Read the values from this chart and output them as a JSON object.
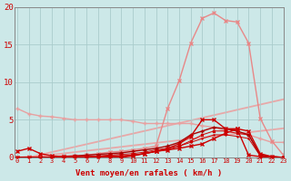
{
  "bg_color": "#cce8e8",
  "grid_color": "#aacccc",
  "xlabel": "Vent moyen/en rafales ( km/h )",
  "xlabel_color": "#cc0000",
  "tick_color": "#cc0000",
  "x": [
    0,
    1,
    2,
    3,
    4,
    5,
    6,
    7,
    8,
    9,
    10,
    11,
    12,
    13,
    14,
    15,
    16,
    17,
    18,
    19,
    20,
    21,
    22,
    23
  ],
  "ylim": [
    0,
    20
  ],
  "xlim": [
    -0.2,
    23
  ],
  "line_linear1": {
    "y": [
      0.0,
      0.0,
      0.18,
      0.35,
      0.52,
      0.7,
      0.88,
      1.05,
      1.22,
      1.4,
      1.58,
      1.75,
      1.93,
      2.1,
      2.28,
      2.46,
      2.63,
      2.8,
      2.98,
      3.16,
      3.33,
      3.51,
      3.68,
      3.86
    ],
    "color": "#e8a8a8",
    "lw": 1.3
  },
  "line_linear2": {
    "y": [
      0.0,
      0.0,
      0.35,
      0.7,
      1.05,
      1.4,
      1.75,
      2.1,
      2.46,
      2.81,
      3.16,
      3.51,
      3.86,
      4.21,
      4.56,
      4.91,
      5.26,
      5.61,
      5.96,
      6.32,
      6.67,
      7.02,
      7.37,
      7.72
    ],
    "color": "#e8a8a8",
    "lw": 1.3
  },
  "line_jagged_pale": {
    "y": [
      0.0,
      0.1,
      0.1,
      0.1,
      0.2,
      0.2,
      0.3,
      0.5,
      0.7,
      0.8,
      1.0,
      1.2,
      1.5,
      6.5,
      10.2,
      15.2,
      18.5,
      19.2,
      18.2,
      18.0,
      15.2,
      5.2,
      2.2,
      0.3
    ],
    "color": "#e88888",
    "marker": "x",
    "ms": 3,
    "lw": 1.0
  },
  "line_flat_pale": {
    "y": [
      6.5,
      5.8,
      5.5,
      5.4,
      5.2,
      5.0,
      5.0,
      5.0,
      5.0,
      5.0,
      4.8,
      4.5,
      4.5,
      4.5,
      4.5,
      4.5,
      4.2,
      4.0,
      3.5,
      3.2,
      3.0,
      2.5,
      2.0,
      2.0
    ],
    "color": "#e8a0a0",
    "marker": "+",
    "ms": 3,
    "lw": 1.0
  },
  "line_dark1": {
    "y": [
      0.8,
      1.2,
      0.5,
      0.2,
      0.1,
      0.1,
      0.1,
      0.1,
      0.2,
      0.2,
      0.3,
      0.5,
      0.8,
      1.0,
      1.2,
      1.5,
      1.8,
      2.5,
      3.2,
      3.8,
      3.5,
      0.5,
      0.1,
      0.0
    ],
    "color": "#cc0000",
    "marker": "x",
    "ms": 3,
    "lw": 1.0
  },
  "line_dark2": {
    "y": [
      0.0,
      0.0,
      0.0,
      0.0,
      0.0,
      0.0,
      0.0,
      0.0,
      0.0,
      0.0,
      0.2,
      0.5,
      0.8,
      1.2,
      1.8,
      2.8,
      5.0,
      5.0,
      3.8,
      3.8,
      0.3,
      0.1,
      0.0,
      0.0
    ],
    "color": "#cc0000",
    "marker": "x",
    "ms": 3,
    "lw": 1.0
  },
  "line_dark3": {
    "y": [
      0.0,
      0.0,
      0.0,
      0.0,
      0.1,
      0.2,
      0.3,
      0.4,
      0.5,
      0.6,
      0.8,
      1.0,
      1.2,
      1.5,
      2.0,
      3.0,
      3.5,
      4.0,
      3.8,
      3.5,
      3.0,
      0.3,
      0.1,
      0.0
    ],
    "color": "#aa0000",
    "marker": "+",
    "ms": 3,
    "lw": 1.0
  },
  "line_dark4": {
    "y": [
      0.0,
      0.0,
      0.0,
      0.0,
      0.0,
      0.0,
      0.0,
      0.0,
      0.0,
      0.1,
      0.3,
      0.5,
      0.8,
      1.0,
      1.5,
      2.2,
      3.0,
      3.5,
      3.5,
      3.2,
      3.0,
      0.2,
      0.1,
      0.0
    ],
    "color": "#cc0000",
    "marker": "x",
    "ms": 2,
    "lw": 0.7
  },
  "line_dark5": {
    "y": [
      0.0,
      0.0,
      0.0,
      0.0,
      0.0,
      0.0,
      0.1,
      0.2,
      0.3,
      0.4,
      0.5,
      0.7,
      1.0,
      1.2,
      1.5,
      2.0,
      2.5,
      3.0,
      3.0,
      2.8,
      2.5,
      0.2,
      0.0,
      0.0
    ],
    "color": "#cc0000",
    "marker": "+",
    "ms": 2,
    "lw": 0.7
  }
}
